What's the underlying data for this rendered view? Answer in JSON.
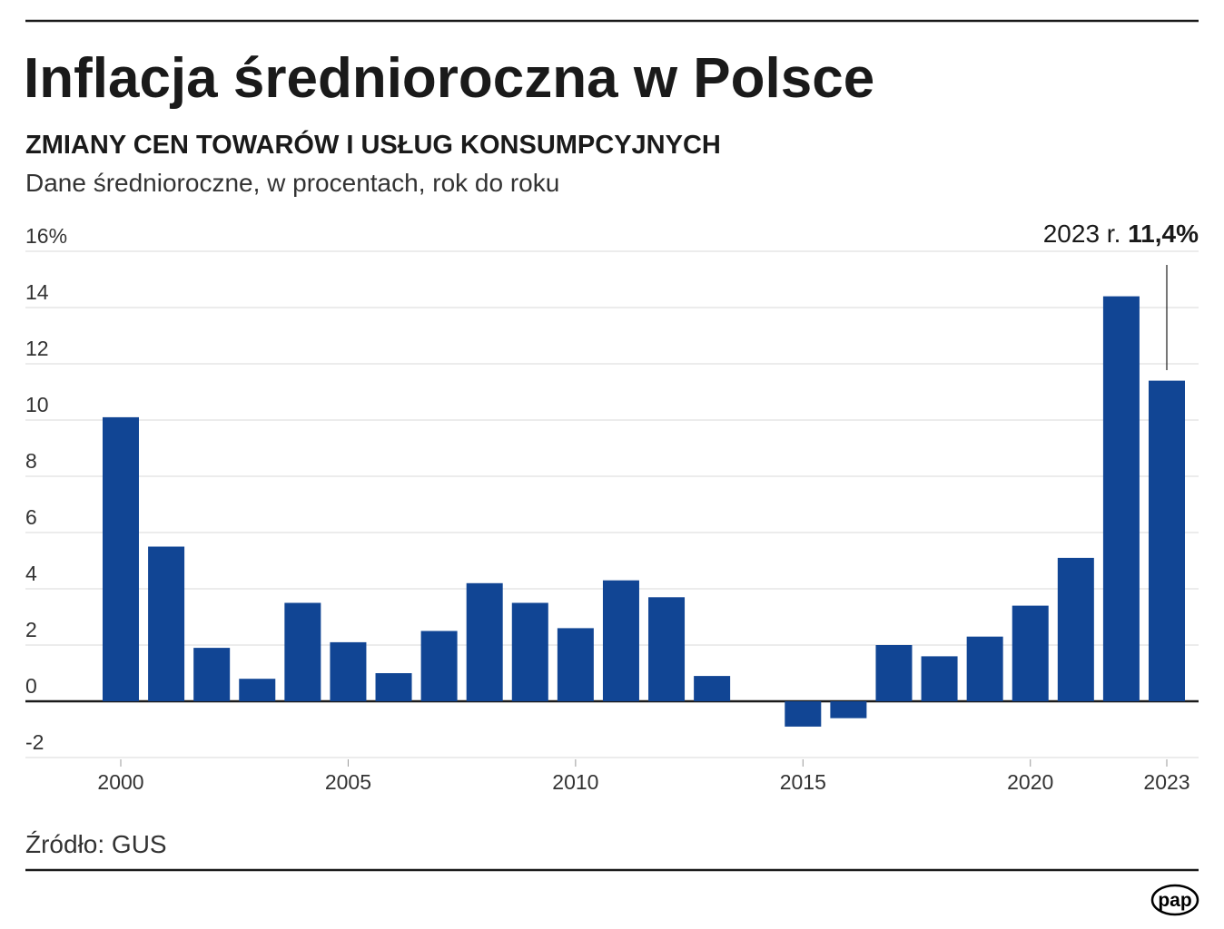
{
  "title": "Inflacja średnioroczna w Polsce",
  "subtitle": "ZMIANY CEN TOWARÓW I USŁUG KONSUMPCYJNYCH",
  "description": "Dane średnioroczne, w procentach, rok do roku",
  "source": "Źródło: GUS",
  "logo": "pap",
  "colors": {
    "bar": "#114594",
    "text": "#1a1a1a",
    "grid": "#d9d9d9"
  },
  "chart_data": {
    "type": "bar",
    "title": "Inflacja średnioroczna w Polsce",
    "subtitle": "ZMIANY CEN TOWARÓW I USŁUG KONSUMPCYJNYCH",
    "ylabel": "",
    "xlabel": "",
    "ylim": [
      -2,
      16
    ],
    "grid": true,
    "yticks": [
      -2,
      0,
      2,
      4,
      6,
      8,
      10,
      12,
      14,
      16
    ],
    "ytick_labels": [
      "-2",
      "0",
      "2",
      "4",
      "6",
      "8",
      "10",
      "12",
      "14",
      "16%"
    ],
    "xtick_labels": [
      "2000",
      "2005",
      "2010",
      "2015",
      "2020",
      "2023"
    ],
    "categories": [
      2000,
      2001,
      2002,
      2003,
      2004,
      2005,
      2006,
      2007,
      2008,
      2009,
      2010,
      2011,
      2012,
      2013,
      2014,
      2015,
      2016,
      2017,
      2018,
      2019,
      2020,
      2021,
      2022,
      2023
    ],
    "values": [
      10.1,
      5.5,
      1.9,
      0.8,
      3.5,
      2.1,
      1.0,
      2.5,
      4.2,
      3.5,
      2.6,
      4.3,
      3.7,
      0.9,
      0.0,
      -0.9,
      -0.6,
      2.0,
      1.6,
      2.3,
      3.4,
      5.1,
      14.4,
      11.4
    ],
    "annotation": {
      "year": 2023,
      "label_prefix": "2023 r.",
      "label_value": "11,4%"
    }
  }
}
